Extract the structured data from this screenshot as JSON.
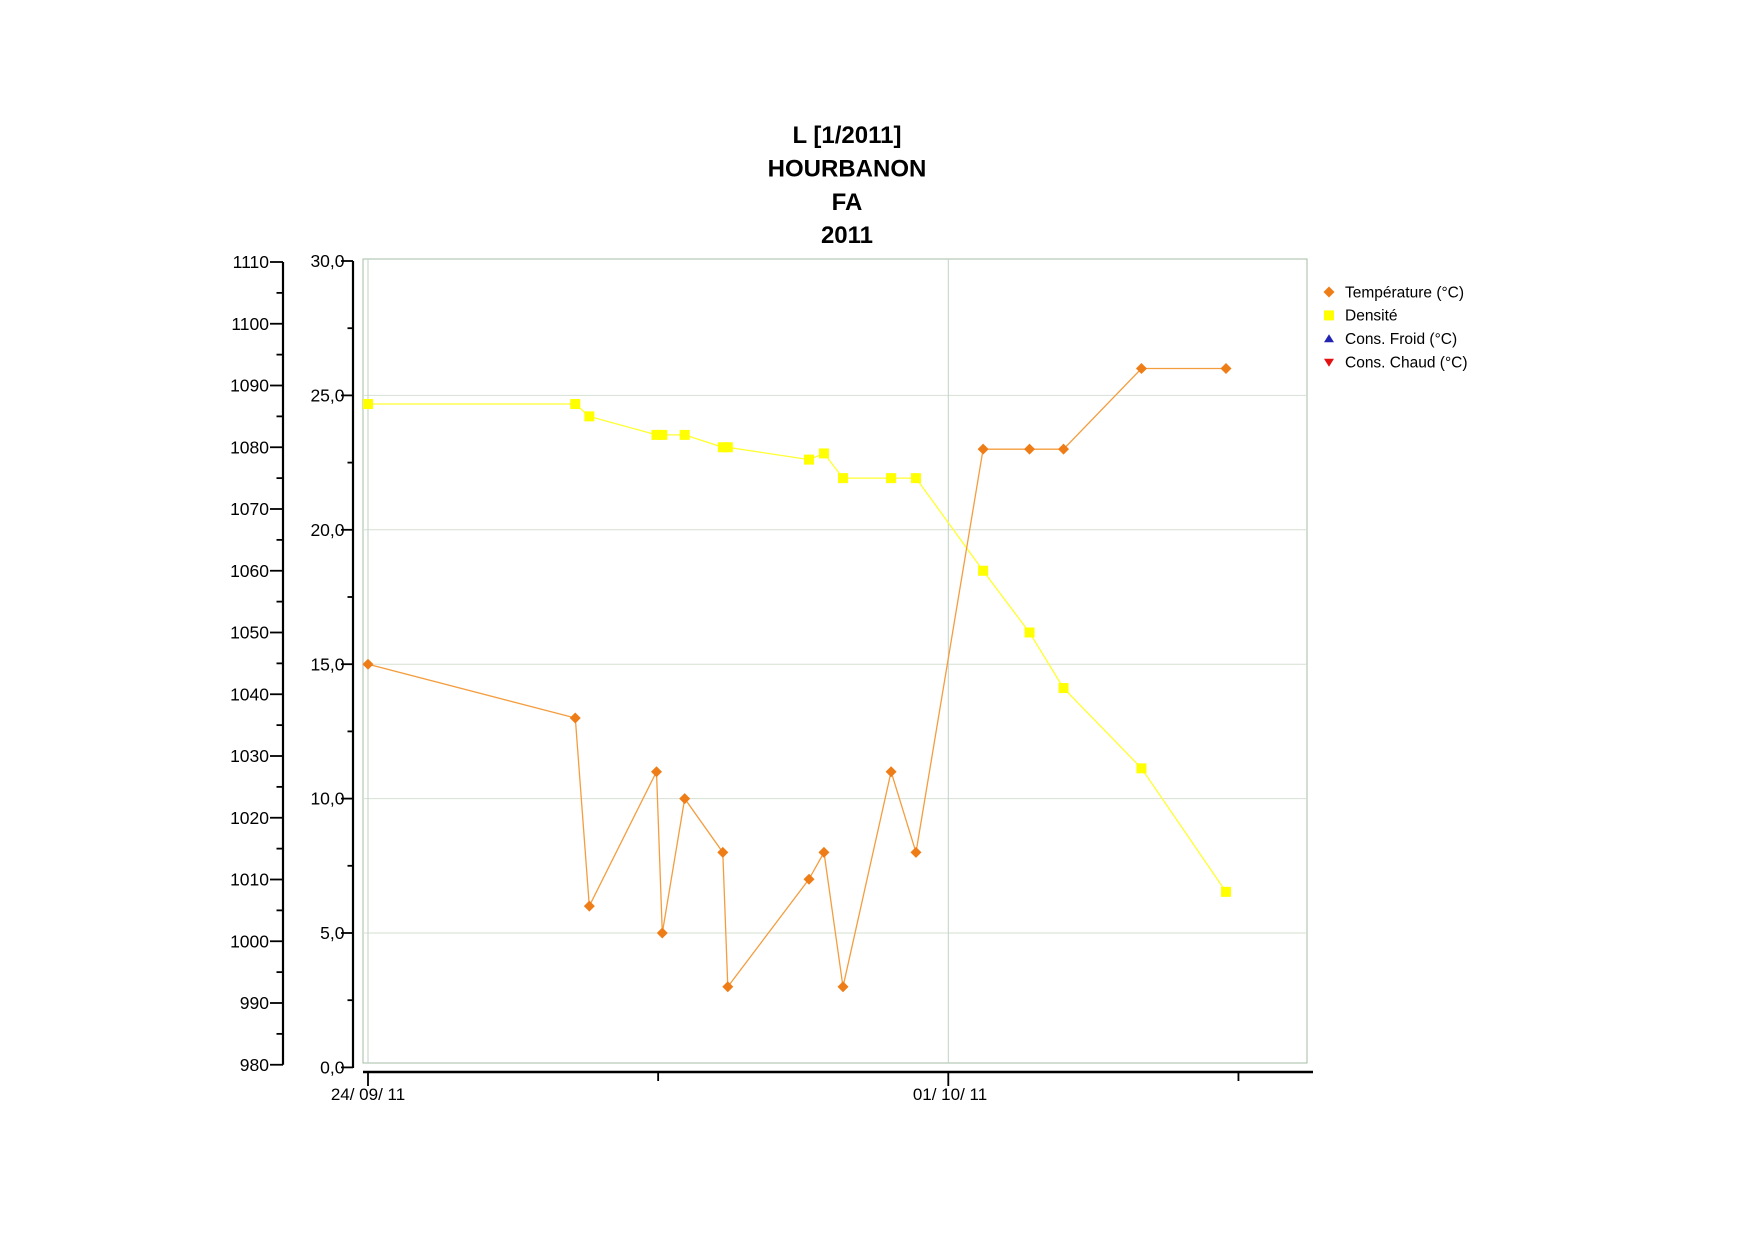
{
  "title": {
    "lines": [
      "L [1/2011]",
      "HOURBANON",
      "FA",
      "2011"
    ]
  },
  "legend": {
    "items": [
      {
        "label": "Température (°C)",
        "marker": "diamond",
        "color": "#EF7D17"
      },
      {
        "label": "Densité",
        "marker": "square",
        "color": "#FFFF00"
      },
      {
        "label": "Cons. Froid (°C)",
        "marker": "triangle-up",
        "color": "#2424B2"
      },
      {
        "label": "Cons. Chaud (°C)",
        "marker": "triangle-down",
        "color": "#E31111"
      }
    ]
  },
  "chart_data": {
    "type": "line",
    "title": "L [1/2011] HOURBANON FA 2011",
    "grid": true,
    "legend_position": "top-right",
    "x_axis": {
      "kind": "time",
      "major_ticks": [
        {
          "day": 0,
          "label": "24/ 09/ 11"
        },
        {
          "day": 7,
          "label": "01/ 10/ 11"
        }
      ],
      "minor_tick_days": [
        3.5,
        10.5
      ],
      "range_days": [
        0,
        11.35
      ]
    },
    "y_axis_density": {
      "side": "left-outer",
      "range": [
        980,
        1110
      ],
      "major_step": 10,
      "minor_step": 5,
      "tick_labels": [
        "1110",
        "1100",
        "1090",
        "1080",
        "1070",
        "1060",
        "1050",
        "1040",
        "1030",
        "1020",
        "1010",
        "1000",
        "990",
        "980"
      ]
    },
    "y_axis_temperature": {
      "side": "left-inner",
      "range": [
        0,
        30
      ],
      "major_step": 5,
      "minor_step": 2.5,
      "tick_labels": [
        "30,0",
        "25,0",
        "20,0",
        "15,0",
        "10,0",
        "5,0",
        "0,0"
      ],
      "gridlines_at": [
        25,
        20,
        15,
        10,
        5
      ],
      "vertical_gridline_days": [
        0,
        7
      ]
    },
    "series": [
      {
        "name": "Température (°C)",
        "axis": "temperature",
        "marker": "diamond",
        "color": "#EF7D17",
        "line_color": "#F49D3F",
        "points": [
          [
            0,
            15
          ],
          [
            2.5,
            13
          ],
          [
            2.67,
            6
          ],
          [
            3.48,
            11
          ],
          [
            3.55,
            5
          ],
          [
            3.82,
            10
          ],
          [
            4.28,
            8
          ],
          [
            4.34,
            3
          ],
          [
            5.32,
            7
          ],
          [
            5.5,
            8
          ],
          [
            5.73,
            3
          ],
          [
            6.31,
            11
          ],
          [
            6.61,
            8
          ],
          [
            7.42,
            23
          ],
          [
            7.98,
            23
          ],
          [
            8.39,
            23
          ],
          [
            9.33,
            26
          ],
          [
            10.35,
            26
          ]
        ]
      },
      {
        "name": "Densité",
        "axis": "density",
        "marker": "square",
        "color": "#FFFF00",
        "line_color": "#FFFF2E",
        "points": [
          [
            0,
            1087
          ],
          [
            2.5,
            1087
          ],
          [
            2.67,
            1085
          ],
          [
            3.48,
            1082
          ],
          [
            3.55,
            1082
          ],
          [
            3.82,
            1082
          ],
          [
            4.28,
            1080
          ],
          [
            4.34,
            1080
          ],
          [
            5.32,
            1078
          ],
          [
            5.5,
            1079
          ],
          [
            5.73,
            1075
          ],
          [
            6.31,
            1075
          ],
          [
            6.61,
            1075
          ],
          [
            7.42,
            1060
          ],
          [
            7.98,
            1050
          ],
          [
            8.39,
            1041
          ],
          [
            9.33,
            1028
          ],
          [
            10.35,
            1008
          ]
        ]
      },
      {
        "name": "Cons. Froid (°C)",
        "axis": "temperature",
        "marker": "triangle-up",
        "color": "#2424B2",
        "line_color": "#2424B2",
        "points": []
      },
      {
        "name": "Cons. Chaud (°C)",
        "axis": "temperature",
        "marker": "triangle-down",
        "color": "#E31111",
        "line_color": "#E31111",
        "points": []
      }
    ],
    "colors": {
      "plot_frame": "#A4BDA4",
      "h_gridline": "#D5E0D2",
      "v_gridline": "#C2D2C5",
      "axis": "#000000"
    }
  }
}
